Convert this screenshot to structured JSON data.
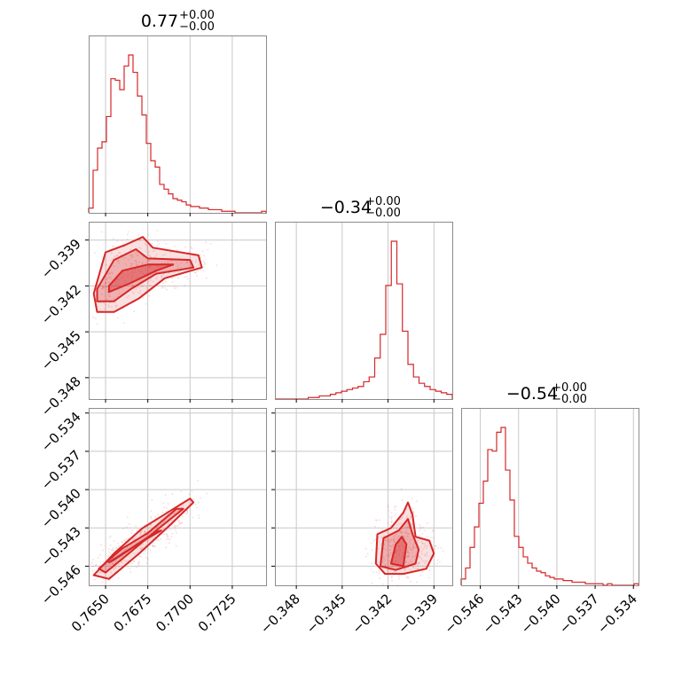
{
  "chart_data": {
    "type": "corner",
    "color": "#d62728",
    "parameters": [
      {
        "title_value": "0.77",
        "title_plus": "+0.00",
        "title_minus": "−0.00",
        "range": [
          0.764,
          0.7745
        ],
        "ticks": [
          {
            "value": 0.765,
            "label": "0.7650"
          },
          {
            "value": 0.7675,
            "label": "0.7675"
          },
          {
            "value": 0.77,
            "label": "0.7700"
          },
          {
            "value": 0.7725,
            "label": "0.7725"
          }
        ]
      },
      {
        "title_value": "−0.34",
        "title_plus": "+0.00",
        "title_minus": "−0.00",
        "range": [
          -0.3494,
          -0.3378
        ],
        "ticks": [
          {
            "value": -0.348,
            "label": "−0.348"
          },
          {
            "value": -0.345,
            "label": "−0.345"
          },
          {
            "value": -0.342,
            "label": "−0.342"
          },
          {
            "value": -0.339,
            "label": "−0.339"
          }
        ]
      },
      {
        "title_value": "−0.54",
        "title_plus": "+0.00",
        "title_minus": "−0.00",
        "range": [
          -0.5475,
          -0.5336
        ],
        "ticks": [
          {
            "value": -0.546,
            "label": "−0.546"
          },
          {
            "value": -0.543,
            "label": "−0.543"
          },
          {
            "value": -0.54,
            "label": "−0.540"
          },
          {
            "value": -0.537,
            "label": "−0.537"
          },
          {
            "value": -0.534,
            "label": "−0.534"
          }
        ]
      }
    ],
    "histograms": [
      [
        0.03,
        0.27,
        0.41,
        0.45,
        0.61,
        0.85,
        0.84,
        0.78,
        0.93,
        1.0,
        0.89,
        0.74,
        0.62,
        0.44,
        0.33,
        0.29,
        0.18,
        0.15,
        0.12,
        0.09,
        0.08,
        0.07,
        0.05,
        0.04,
        0.04,
        0.03,
        0.03,
        0.02,
        0.02,
        0.02,
        0.01,
        0.01,
        0.01,
        0.0,
        0.0,
        0.0,
        0.0,
        0.0,
        0.0,
        0.01
      ],
      [
        0.0,
        0.0,
        0.0,
        0.0,
        0.0,
        0.0,
        0.01,
        0.01,
        0.02,
        0.02,
        0.03,
        0.04,
        0.05,
        0.06,
        0.07,
        0.08,
        0.11,
        0.14,
        0.26,
        0.41,
        0.72,
        1.0,
        0.73,
        0.43,
        0.22,
        0.14,
        0.1,
        0.08,
        0.06,
        0.05,
        0.04,
        0.03
      ],
      [
        0.04,
        0.11,
        0.24,
        0.37,
        0.52,
        0.66,
        0.86,
        0.85,
        0.97,
        1.0,
        0.73,
        0.54,
        0.31,
        0.24,
        0.18,
        0.14,
        0.11,
        0.09,
        0.08,
        0.06,
        0.05,
        0.04,
        0.04,
        0.03,
        0.03,
        0.02,
        0.02,
        0.02,
        0.01,
        0.01,
        0.01,
        0.01,
        0.0,
        0.01,
        0.0,
        0.0,
        0.0,
        0.0,
        0.0,
        0.01
      ]
    ],
    "pair_panels": [
      {
        "x_param": 0,
        "y_param": 1,
        "peak": [
          0.7662,
          -0.3414
        ],
        "contours": [
          {
            "level": 0.5,
            "points": [
              [
                0.7652,
                -0.342
              ],
              [
                0.766,
                -0.341
              ],
              [
                0.7675,
                -0.3406
              ],
              [
                0.769,
                -0.3406
              ],
              [
                0.768,
                -0.341
              ],
              [
                0.7665,
                -0.3418
              ],
              [
                0.7652,
                -0.3424
              ]
            ]
          },
          {
            "level": 1.0,
            "points": [
              [
                0.7645,
                -0.3422
              ],
              [
                0.7655,
                -0.3403
              ],
              [
                0.7668,
                -0.3396
              ],
              [
                0.7675,
                -0.3402
              ],
              [
                0.77,
                -0.3403
              ],
              [
                0.7702,
                -0.3408
              ],
              [
                0.768,
                -0.3412
              ],
              [
                0.7665,
                -0.3422
              ],
              [
                0.7655,
                -0.343
              ],
              [
                0.7645,
                -0.343
              ]
            ]
          },
          {
            "level": 1.5,
            "points": [
              [
                0.7643,
                -0.3425
              ],
              [
                0.765,
                -0.3398
              ],
              [
                0.7662,
                -0.3393
              ],
              [
                0.7672,
                -0.3388
              ],
              [
                0.7678,
                -0.3395
              ],
              [
                0.7705,
                -0.34
              ],
              [
                0.7707,
                -0.3408
              ],
              [
                0.7685,
                -0.3415
              ],
              [
                0.767,
                -0.3428
              ],
              [
                0.7655,
                -0.3437
              ],
              [
                0.7645,
                -0.3437
              ]
            ]
          }
        ]
      },
      {
        "x_param": 0,
        "y_param": 2,
        "peak": [
          0.7662,
          -0.5448
        ],
        "contours": [
          {
            "level": 0.5,
            "points": [
              [
                0.7652,
                -0.5457
              ],
              [
                0.7665,
                -0.5446
              ],
              [
                0.768,
                -0.5433
              ],
              [
                0.7683,
                -0.5432
              ],
              [
                0.767,
                -0.5442
              ],
              [
                0.7655,
                -0.5455
              ]
            ]
          },
          {
            "level": 1.0,
            "points": [
              [
                0.7646,
                -0.5462
              ],
              [
                0.766,
                -0.5446
              ],
              [
                0.7675,
                -0.5434
              ],
              [
                0.7692,
                -0.5415
              ],
              [
                0.7696,
                -0.5415
              ],
              [
                0.768,
                -0.5432
              ],
              [
                0.7662,
                -0.5452
              ],
              [
                0.765,
                -0.5465
              ]
            ]
          },
          {
            "level": 1.5,
            "points": [
              [
                0.7643,
                -0.5467
              ],
              [
                0.7655,
                -0.545
              ],
              [
                0.7672,
                -0.543
              ],
              [
                0.77,
                -0.5407
              ],
              [
                0.7702,
                -0.541
              ],
              [
                0.7688,
                -0.5428
              ],
              [
                0.767,
                -0.545
              ],
              [
                0.7652,
                -0.547
              ]
            ]
          }
        ]
      },
      {
        "x_param": 1,
        "y_param": 2,
        "peak": [
          -0.3413,
          -0.5452
        ],
        "contours": [
          {
            "level": 0.5,
            "points": [
              [
                -0.3418,
                -0.5458
              ],
              [
                -0.3415,
                -0.5443
              ],
              [
                -0.3411,
                -0.5437
              ],
              [
                -0.3408,
                -0.5443
              ],
              [
                -0.341,
                -0.546
              ]
            ]
          },
          {
            "level": 1.0,
            "points": [
              [
                -0.3425,
                -0.546
              ],
              [
                -0.3423,
                -0.5438
              ],
              [
                -0.3413,
                -0.5432
              ],
              [
                -0.3407,
                -0.5423
              ],
              [
                -0.3404,
                -0.5435
              ],
              [
                -0.34,
                -0.5447
              ],
              [
                -0.3402,
                -0.5458
              ],
              [
                -0.3415,
                -0.5463
              ]
            ]
          },
          {
            "level": 1.5,
            "points": [
              [
                -0.3428,
                -0.5458
              ],
              [
                -0.3427,
                -0.5435
              ],
              [
                -0.3418,
                -0.543
              ],
              [
                -0.341,
                -0.5418
              ],
              [
                -0.3407,
                -0.541
              ],
              [
                -0.3404,
                -0.542
              ],
              [
                -0.3402,
                -0.5437
              ],
              [
                -0.3393,
                -0.544
              ],
              [
                -0.339,
                -0.545
              ],
              [
                -0.3395,
                -0.5462
              ],
              [
                -0.341,
                -0.5466
              ],
              [
                -0.3422,
                -0.5466
              ]
            ]
          }
        ]
      }
    ]
  }
}
